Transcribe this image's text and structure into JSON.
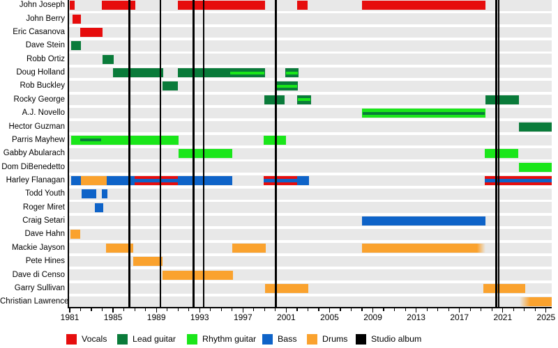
{
  "chart_data": {
    "type": "timeline",
    "subtype": "band-members-gantt",
    "title": "",
    "x_axis": {
      "range": [
        1981,
        2025.5
      ],
      "tick_years": [
        1981,
        1985,
        1989,
        1993,
        1997,
        2001,
        2005,
        2009,
        2013,
        2017,
        2021,
        2025
      ],
      "minor_tick_step": 1,
      "grid": "off"
    },
    "legend_position": "bottom",
    "legend": [
      {
        "label": "Vocals",
        "role": "vocals"
      },
      {
        "label": "Lead guitar",
        "role": "lead_guitar"
      },
      {
        "label": "Rhythm guitar",
        "role": "rhythm_guitar"
      },
      {
        "label": "Bass",
        "role": "bass"
      },
      {
        "label": "Drums",
        "role": "drums"
      },
      {
        "label": "Studio album",
        "role": "album"
      }
    ],
    "role_colors": {
      "vocals": "#e60d0d",
      "lead_guitar": "#0a7b3a",
      "rhythm_guitar": "#1ae61a",
      "bass": "#0e63c8",
      "drums": "#faa22e",
      "album": "#000000"
    },
    "album_release_years": [
      1986.52,
      1989.38,
      1992.44,
      1993.39,
      2000.04,
      2020.4,
      2020.63
    ],
    "members": [
      {
        "name": "John Joseph",
        "segments": [
          {
            "role": "vocals",
            "from": 1981.0,
            "to": 1981.47
          },
          {
            "role": "vocals",
            "from": 1983.97,
            "to": 1987.08
          },
          {
            "role": "vocals",
            "from": 1991.0,
            "to": 1999.05
          },
          {
            "role": "vocals",
            "from": 2002.0,
            "to": 2003.0
          },
          {
            "role": "vocals",
            "from": 2008.0,
            "to": 2019.4
          }
        ]
      },
      {
        "name": "John Berry",
        "segments": [
          {
            "role": "vocals",
            "from": 1981.27,
            "to": 1982.03
          }
        ]
      },
      {
        "name": "Eric Casanova",
        "segments": [
          {
            "role": "vocals",
            "from": 1981.97,
            "to": 1984.0
          }
        ]
      },
      {
        "name": "Dave Stein",
        "segments": [
          {
            "role": "lead_guitar",
            "from": 1981.1,
            "to": 1982.03
          }
        ]
      },
      {
        "name": "Robb Ortiz",
        "segments": [
          {
            "role": "lead_guitar",
            "from": 1984.0,
            "to": 1985.08
          }
        ]
      },
      {
        "name": "Doug Holland",
        "segments": [
          {
            "role": "lead_guitar",
            "from": 1985.0,
            "to": 1989.63
          },
          {
            "role": "lead_guitar",
            "from": 1991.0,
            "to": 1999.05,
            "stripe": {
              "role": "rhythm_guitar",
              "from": 1995.82,
              "to": 1999.0
            }
          },
          {
            "role": "lead_guitar",
            "from": 2000.9,
            "to": 2002.16,
            "stripe": {
              "role": "rhythm_guitar",
              "from": 2000.98,
              "to": 2002.08
            }
          }
        ]
      },
      {
        "name": "Rob Buckley",
        "segments": [
          {
            "role": "lead_guitar",
            "from": 1989.55,
            "to": 1991.0
          },
          {
            "role": "lead_guitar",
            "from": 2000.05,
            "to": 2002.1,
            "stripe": {
              "role": "rhythm_guitar",
              "from": 2000.13,
              "to": 2002.02
            }
          }
        ]
      },
      {
        "name": "Rocky George",
        "segments": [
          {
            "role": "lead_guitar",
            "from": 1998.98,
            "to": 2000.87
          },
          {
            "role": "lead_guitar",
            "from": 2002.0,
            "to": 2003.3,
            "stripe": {
              "role": "rhythm_guitar",
              "from": 2002.08,
              "to": 2003.22
            }
          },
          {
            "role": "lead_guitar",
            "from": 2019.38,
            "to": 2022.5
          }
        ]
      },
      {
        "name": "A.J. Novello",
        "segments": [
          {
            "role": "rhythm_guitar",
            "from": 2008.0,
            "to": 2019.38,
            "stripe": {
              "role": "lead_guitar",
              "from": 2008.06,
              "to": 2019.32
            }
          }
        ]
      },
      {
        "name": "Hector Guzman",
        "segments": [
          {
            "role": "lead_guitar",
            "from": 2022.5,
            "to": 2025.5
          }
        ]
      },
      {
        "name": "Parris Mayhew",
        "segments": [
          {
            "role": "rhythm_guitar",
            "from": 1981.1,
            "to": 1991.05,
            "stripe": {
              "role": "lead_guitar",
              "from": 1981.97,
              "to": 1983.9
            }
          },
          {
            "role": "rhythm_guitar",
            "from": 1998.93,
            "to": 2001.0
          }
        ]
      },
      {
        "name": "Gabby Abularach",
        "segments": [
          {
            "role": "rhythm_guitar",
            "from": 1991.05,
            "to": 1996.0
          },
          {
            "role": "rhythm_guitar",
            "from": 2019.34,
            "to": 2022.45
          }
        ]
      },
      {
        "name": "Dom DiBenedetto",
        "segments": [
          {
            "role": "rhythm_guitar",
            "from": 2022.5,
            "to": 2025.5
          }
        ]
      },
      {
        "name": "Harley Flanagan",
        "segments": [
          {
            "role": "bass",
            "from": 1981.1,
            "to": 1982.03
          },
          {
            "role": "drums",
            "from": 1982.03,
            "to": 1984.43
          },
          {
            "role": "bass",
            "from": 1984.43,
            "to": 1986.97
          },
          {
            "role": "vocals",
            "from": 1986.97,
            "to": 1991.0,
            "stripe": {
              "role": "bass",
              "from": 1986.97,
              "to": 1991.0
            }
          },
          {
            "role": "bass",
            "from": 1991.0,
            "to": 1996.0
          },
          {
            "role": "vocals",
            "from": 1998.93,
            "to": 2002.0,
            "stripe": {
              "role": "bass",
              "from": 1998.93,
              "to": 2002.0
            }
          },
          {
            "role": "bass",
            "from": 2002.0,
            "to": 2003.08
          },
          {
            "role": "vocals",
            "from": 2019.34,
            "to": 2025.5,
            "stripe": {
              "role": "bass",
              "from": 2019.34,
              "to": 2025.5
            }
          }
        ]
      },
      {
        "name": "Todd Youth",
        "segments": [
          {
            "role": "bass",
            "from": 1982.08,
            "to": 1983.47
          },
          {
            "role": "bass",
            "from": 1983.94,
            "to": 1984.5
          }
        ]
      },
      {
        "name": "Roger Miret",
        "segments": [
          {
            "role": "bass",
            "from": 1983.3,
            "to": 1984.07
          }
        ]
      },
      {
        "name": "Craig Setari",
        "segments": [
          {
            "role": "bass",
            "from": 2008.02,
            "to": 2019.38
          }
        ]
      },
      {
        "name": "Dave Hahn",
        "segments": [
          {
            "role": "drums",
            "from": 1981.06,
            "to": 1981.97
          }
        ]
      },
      {
        "name": "Mackie Jayson",
        "segments": [
          {
            "role": "drums",
            "from": 1984.37,
            "to": 1986.84
          },
          {
            "role": "drums",
            "from": 1996.0,
            "to": 1999.11
          },
          {
            "role": "drums",
            "from": 2008.02,
            "to": 2019.38,
            "fade": "right"
          }
        ]
      },
      {
        "name": "Pete Hines",
        "segments": [
          {
            "role": "drums",
            "from": 1986.84,
            "to": 1989.59
          }
        ]
      },
      {
        "name": "Dave di Censo",
        "segments": [
          {
            "role": "drums",
            "from": 1989.59,
            "to": 1996.1
          }
        ]
      },
      {
        "name": "Garry Sullivan",
        "segments": [
          {
            "role": "drums",
            "from": 1999.04,
            "to": 2003.02
          },
          {
            "role": "drums",
            "from": 2019.19,
            "to": 2023.1
          }
        ]
      },
      {
        "name": "Christian Lawrence",
        "segments": [
          {
            "role": "drums",
            "from": 2022.55,
            "to": 2025.5,
            "fade": "left"
          }
        ]
      }
    ]
  },
  "styles": {
    "row_band_color": "#e8e8e8",
    "background": "#ffffff",
    "axis_color": "#000000",
    "text_color": "#000000"
  }
}
